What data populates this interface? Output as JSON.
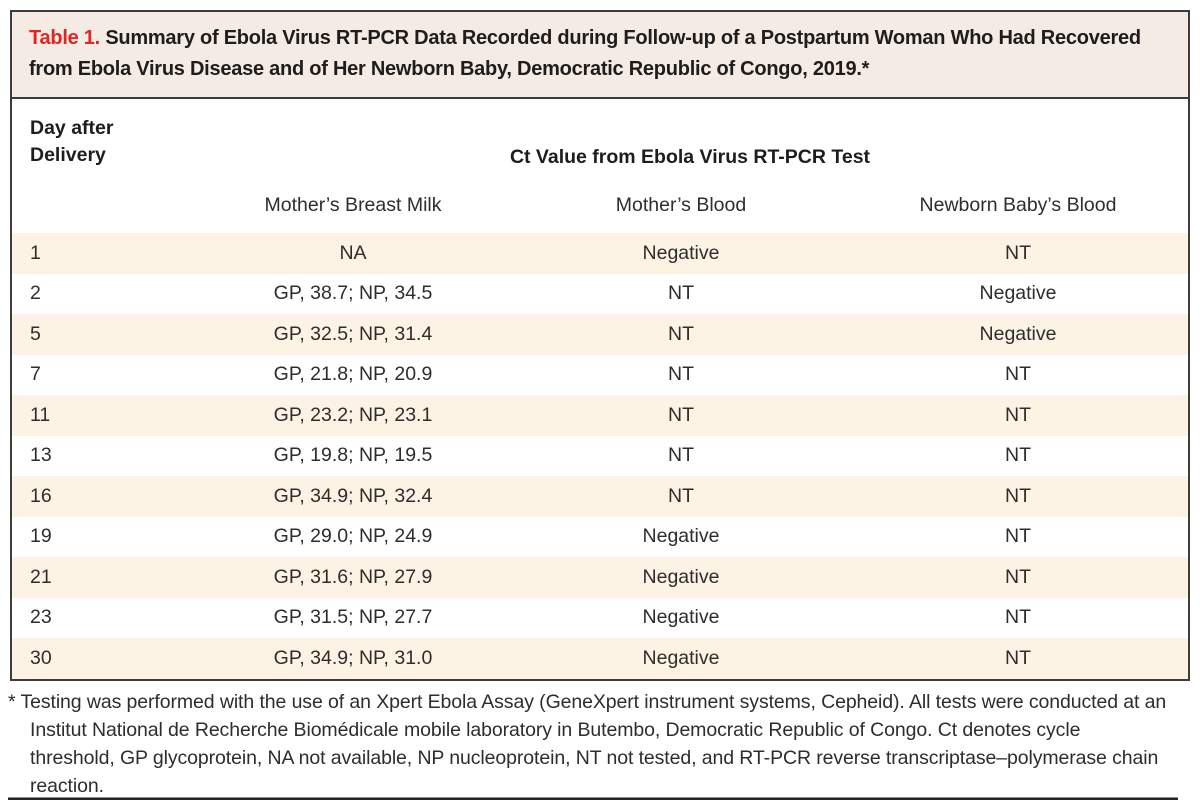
{
  "table": {
    "label": "Table 1.",
    "title": "Summary of Ebola Virus RT-PCR Data Recorded during Follow-up of a Postpartum Woman Who Had Recovered from Ebola Virus Disease and of Her Newborn Baby, Democratic Republic of Congo, 2019.*",
    "header": {
      "day_col": "Day after\nDelivery",
      "span_header": "Ct Value from Ebola Virus RT-PCR Test",
      "columns": [
        "Mother’s Breast Milk",
        "Mother’s Blood",
        "Newborn Baby’s Blood"
      ]
    },
    "rows": [
      {
        "day": "1",
        "breast_milk": "NA",
        "mother_blood": "Negative",
        "baby_blood": "NT"
      },
      {
        "day": "2",
        "breast_milk": "GP, 38.7; NP, 34.5",
        "mother_blood": "NT",
        "baby_blood": "Negative"
      },
      {
        "day": "5",
        "breast_milk": "GP, 32.5; NP, 31.4",
        "mother_blood": "NT",
        "baby_blood": "Negative"
      },
      {
        "day": "7",
        "breast_milk": "GP, 21.8; NP, 20.9",
        "mother_blood": "NT",
        "baby_blood": "NT"
      },
      {
        "day": "11",
        "breast_milk": "GP, 23.2; NP, 23.1",
        "mother_blood": "NT",
        "baby_blood": "NT"
      },
      {
        "day": "13",
        "breast_milk": "GP, 19.8; NP, 19.5",
        "mother_blood": "NT",
        "baby_blood": "NT"
      },
      {
        "day": "16",
        "breast_milk": "GP, 34.9; NP, 32.4",
        "mother_blood": "NT",
        "baby_blood": "NT"
      },
      {
        "day": "19",
        "breast_milk": "GP, 29.0; NP, 24.9",
        "mother_blood": "Negative",
        "baby_blood": "NT"
      },
      {
        "day": "21",
        "breast_milk": "GP, 31.6; NP, 27.9",
        "mother_blood": "Negative",
        "baby_blood": "NT"
      },
      {
        "day": "23",
        "breast_milk": "GP, 31.5; NP, 27.7",
        "mother_blood": "Negative",
        "baby_blood": "NT"
      },
      {
        "day": "30",
        "breast_milk": "GP, 34.9; NP, 31.0",
        "mother_blood": "Negative",
        "baby_blood": "NT"
      }
    ]
  },
  "footnote": "* Testing was performed with the use of an Xpert Ebola Assay (GeneXpert instrument systems, Cepheid). All tests were conducted at an Institut National de Recherche Biomédicale mobile laboratory in Butembo, Democratic Republic of Congo. Ct denotes cycle threshold, GP glycoprotein, NA not available, NP nucleoprotein, NT not tested, and RT-PCR reverse transcriptase–polymerase chain reaction.",
  "colors": {
    "accent_red": "#e32522",
    "title_band_bg": "#f3ebe4",
    "stripe_bg": "#fcf3e5",
    "border": "#3e3c3b"
  }
}
